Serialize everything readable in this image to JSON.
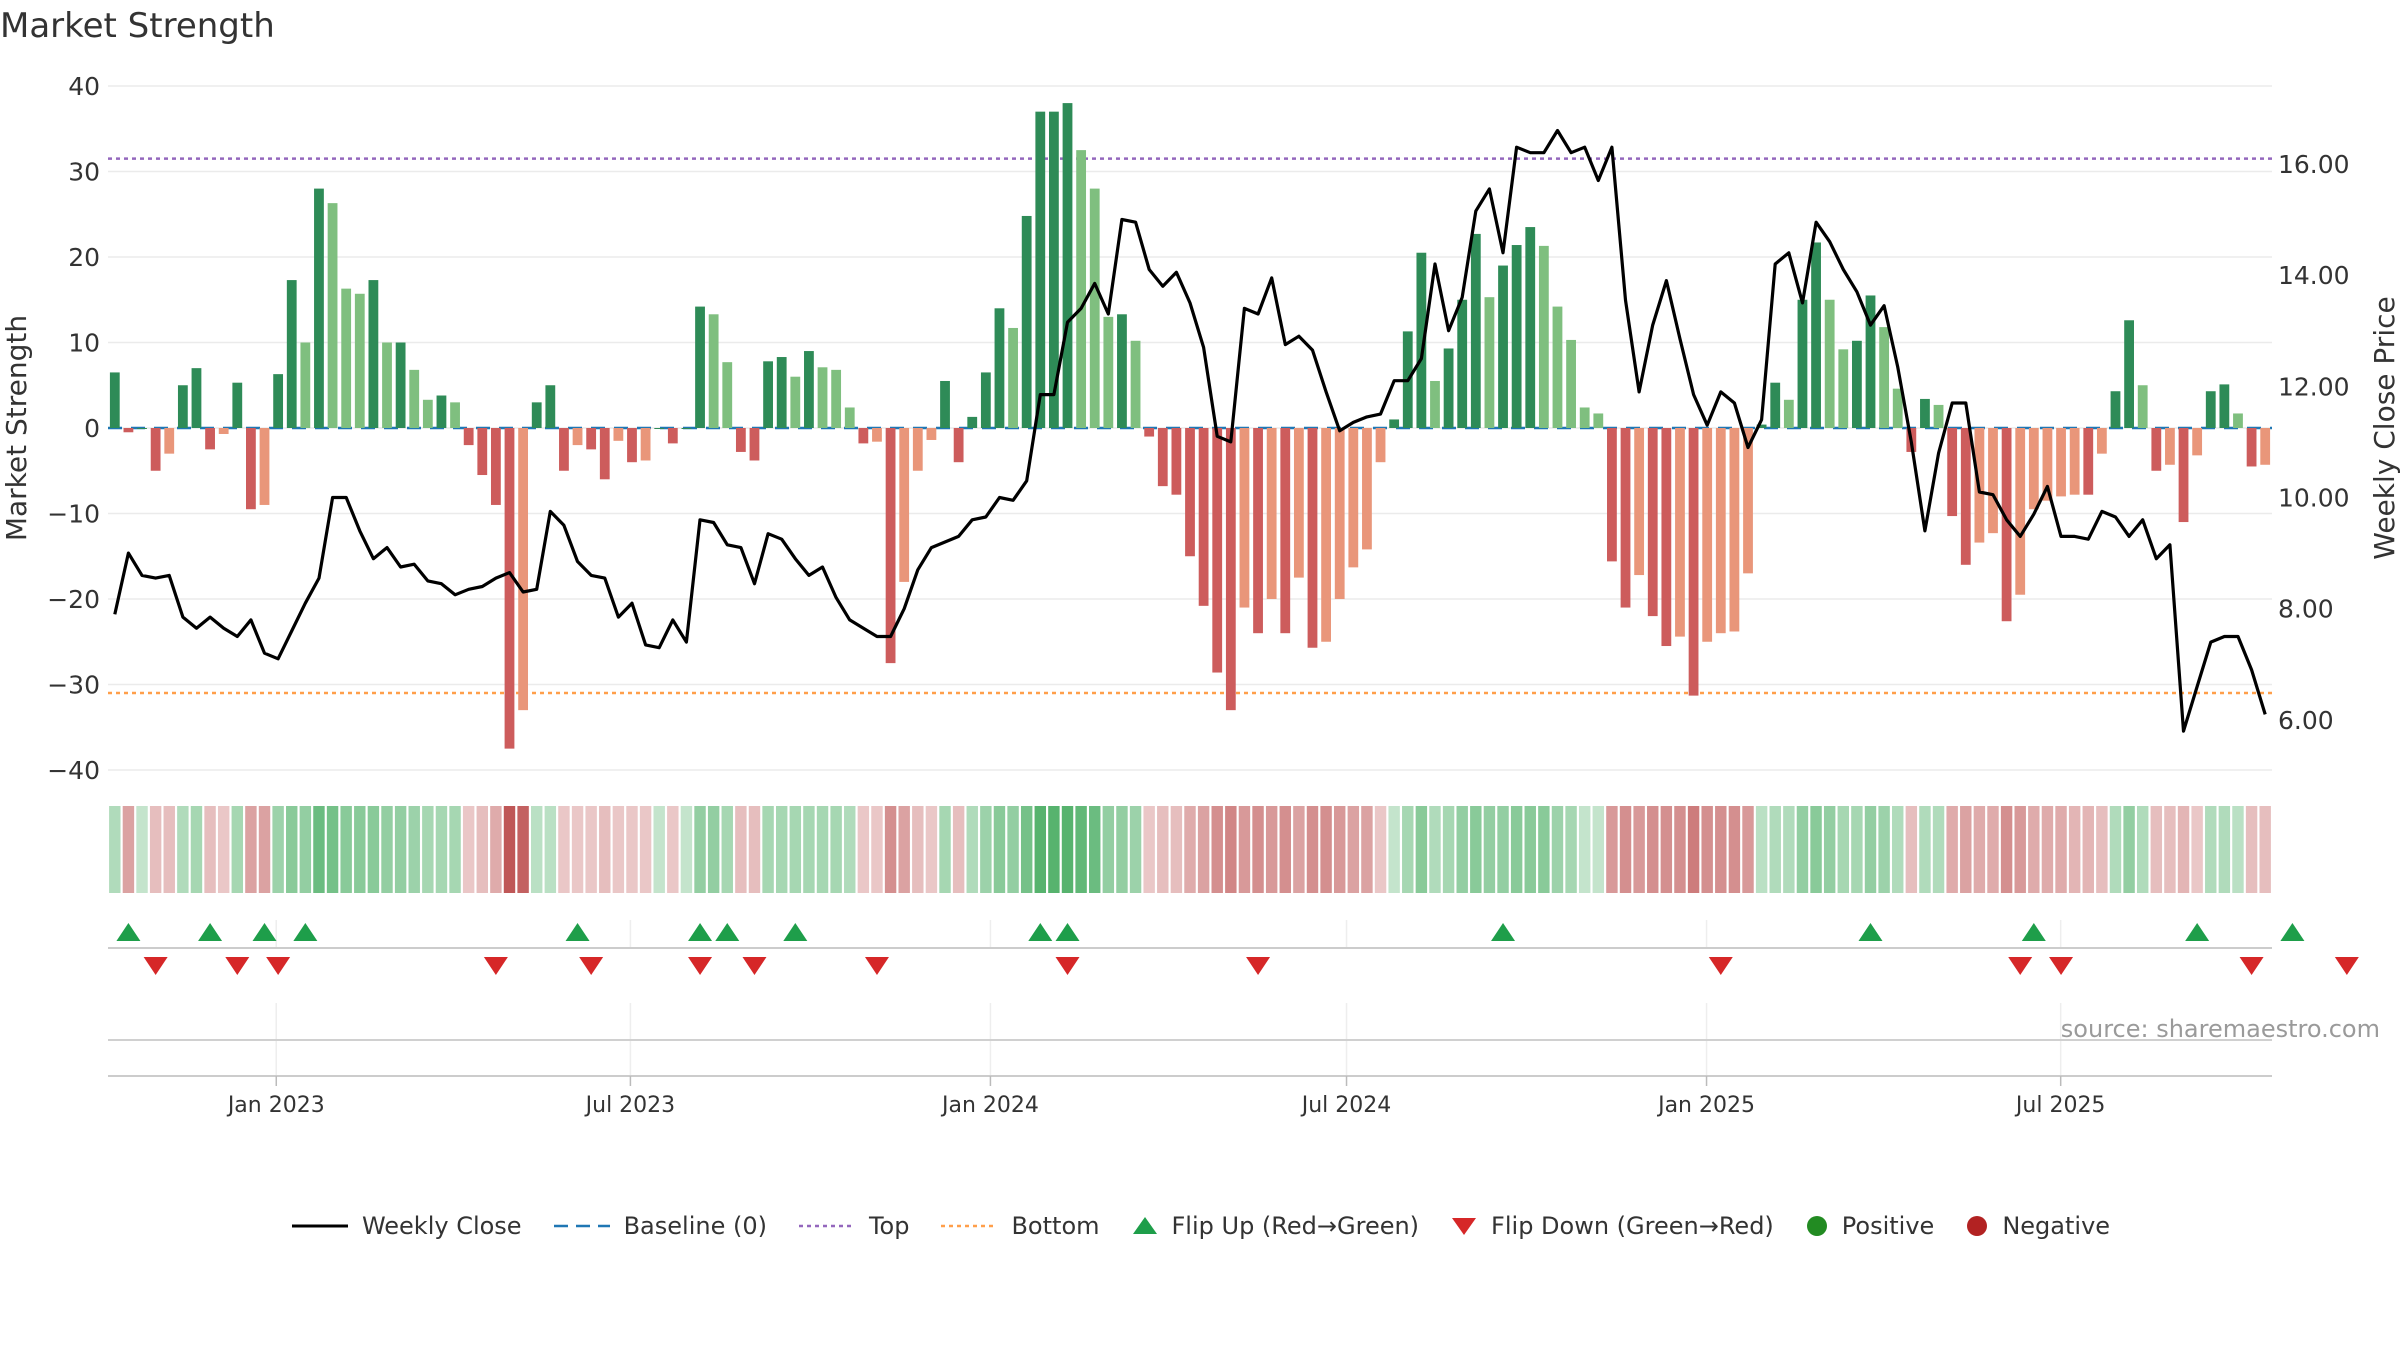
{
  "title": "Market Strength",
  "source": "source: sharemaestro.com",
  "colors": {
    "dark_green": "#2e8b57",
    "light_green": "#7fbf7f",
    "dark_red": "#cd5c5c",
    "light_red": "#e9967a",
    "top_line": "#9467bd",
    "bottom_line": "#ff9f4a",
    "baseline": "#1f77b4",
    "price_line": "#000000",
    "flip_up": "#1e9e4a",
    "flip_down": "#d62728",
    "positive": "#228b22",
    "negative": "#b22222"
  },
  "legend": [
    {
      "key": "weekly_close",
      "label": "Weekly Close"
    },
    {
      "key": "baseline",
      "label": "Baseline (0)"
    },
    {
      "key": "top",
      "label": "Top"
    },
    {
      "key": "bottom",
      "label": "Bottom"
    },
    {
      "key": "flip_up",
      "label": "Flip Up (Red→Green)"
    },
    {
      "key": "flip_down",
      "label": "Flip Down (Green→Red)"
    },
    {
      "key": "positive",
      "label": "Positive"
    },
    {
      "key": "negative",
      "label": "Negative"
    }
  ],
  "chart_data": {
    "type": "bar",
    "title": "Market Strength",
    "ylabel": "Market Strength",
    "y2label": "Weekly Close Price",
    "ylim": [
      -40,
      40
    ],
    "y2lim": [
      5.1,
      17.4
    ],
    "yticks": [
      40,
      30,
      20,
      10,
      0,
      -10,
      -20,
      -30,
      -40
    ],
    "y2ticks": [
      "16.00",
      "14.00",
      "12.00",
      "10.00",
      "8.00",
      "6.00"
    ],
    "top": 31.5,
    "bottom": -31,
    "x_start": "2022-10-07",
    "x_end": "2025-10-17",
    "xticks": [
      {
        "label": "Jan 2023",
        "date": "2023-01-01"
      },
      {
        "label": "Jul 2023",
        "date": "2023-07-01"
      },
      {
        "label": "Jan 2024",
        "date": "2024-01-01"
      },
      {
        "label": "Jul 2024",
        "date": "2024-07-01"
      },
      {
        "label": "Jan 2025",
        "date": "2025-01-01"
      },
      {
        "label": "Jul 2025",
        "date": "2025-07-01"
      }
    ],
    "strength": [
      6.5,
      -0.5,
      0,
      -5,
      -3,
      5,
      7,
      -2.5,
      -0.7,
      5.3,
      -9.5,
      -9,
      6.3,
      17.3,
      10,
      28,
      26.3,
      16.3,
      15.7,
      17.3,
      10,
      10,
      6.8,
      3.3,
      3.8,
      3,
      -2,
      -5.5,
      -9,
      -37.5,
      -33,
      3,
      5,
      -5,
      -2,
      -2.5,
      -6,
      -1.5,
      -4,
      -3.8,
      0,
      -1.8,
      0,
      14.2,
      13.3,
      7.7,
      -2.8,
      -3.8,
      7.8,
      8.3,
      6,
      9,
      7.1,
      6.8,
      2.4,
      -1.8,
      -1.6,
      -27.5,
      -18,
      -5,
      -1.4,
      5.5,
      -4,
      1.3,
      6.5,
      14,
      11.7,
      24.8,
      37,
      37,
      38,
      32.5,
      28,
      13,
      13.3,
      10.2,
      -1,
      -6.8,
      -7.8,
      -15,
      -20.8,
      -28.6,
      -33,
      -21,
      -24,
      -20,
      -24,
      -17.5,
      -25.7,
      -25,
      -20,
      -16.3,
      -14.2,
      -4,
      1,
      11.3,
      20.5,
      5.5,
      9.3,
      15,
      22.7,
      15.3,
      19,
      21.4,
      23.5,
      21.3,
      14.2,
      10.3,
      2.4,
      1.7,
      -15.6,
      -21,
      -17.2,
      -22,
      -25.5,
      -24.4,
      -31.3,
      -25,
      -24,
      -23.8,
      -17,
      0.4,
      5.3,
      3.3,
      15,
      21.7,
      15,
      9.2,
      10.2,
      15.5,
      11.8,
      4.6,
      -2.8,
      3.4,
      2.7,
      -10.3,
      -16,
      -13.4,
      -12.3,
      -22.6,
      -19.5,
      -9.5,
      -8.5,
      -8,
      -7.8,
      -7.8,
      -3,
      4.3,
      12.6,
      5,
      -5,
      -4.3,
      -11,
      -3.2,
      4.3,
      5.1,
      1.7,
      -4.5,
      -4.3
    ],
    "weekly_close": [
      7.9,
      9.0,
      8.6,
      8.55,
      8.6,
      7.85,
      7.65,
      7.85,
      7.65,
      7.5,
      7.8,
      7.2,
      7.1,
      7.6,
      8.1,
      8.55,
      10.0,
      10.0,
      9.4,
      8.9,
      9.1,
      8.75,
      8.8,
      8.5,
      8.45,
      8.25,
      8.35,
      8.4,
      8.55,
      8.65,
      8.3,
      8.35,
      9.75,
      9.5,
      8.85,
      8.6,
      8.55,
      7.85,
      8.1,
      7.35,
      7.3,
      7.8,
      7.4,
      9.6,
      9.55,
      9.15,
      9.1,
      8.45,
      9.35,
      9.25,
      8.9,
      8.6,
      8.75,
      8.2,
      7.8,
      7.65,
      7.5,
      7.5,
      8.0,
      8.7,
      9.1,
      9.2,
      9.3,
      9.6,
      9.65,
      10.0,
      9.95,
      10.3,
      11.85,
      11.85,
      13.15,
      13.4,
      13.85,
      13.3,
      15.0,
      14.95,
      14.1,
      13.8,
      14.05,
      13.5,
      12.7,
      11.1,
      11.0,
      13.4,
      13.3,
      13.95,
      12.75,
      12.9,
      12.65,
      11.9,
      11.2,
      11.35,
      11.45,
      11.5,
      12.1,
      12.1,
      12.5,
      14.2,
      13.0,
      13.6,
      15.15,
      15.55,
      14.4,
      16.3,
      16.2,
      16.2,
      16.6,
      16.2,
      16.3,
      15.7,
      16.3,
      13.55,
      11.9,
      13.1,
      13.9,
      12.85,
      11.85,
      11.3,
      11.9,
      11.7,
      10.9,
      11.4,
      14.2,
      14.4,
      13.5,
      14.95,
      14.6,
      14.1,
      13.7,
      13.1,
      13.45,
      12.35,
      11.0,
      9.4,
      10.8,
      11.7,
      11.7,
      10.1,
      10.05,
      9.6,
      9.3,
      9.7,
      10.2,
      9.3,
      9.3,
      9.25,
      9.75,
      9.65,
      9.3,
      9.6,
      8.9,
      9.15,
      5.8,
      6.6,
      7.4,
      7.5,
      7.5,
      6.9,
      6.1
    ],
    "flip_up": [
      1,
      7,
      11,
      14,
      34,
      43,
      45,
      50,
      68,
      70,
      102,
      129,
      141,
      153,
      160
    ],
    "flip_down": [
      3,
      9,
      12,
      28,
      35,
      43,
      47,
      56,
      70,
      84,
      118,
      140,
      143,
      157,
      164
    ],
    "heat_opacity": [
      0.4,
      0.5,
      0.3,
      0.35,
      0.35,
      0.4,
      0.45,
      0.35,
      0.3,
      0.45,
      0.5,
      0.5,
      0.5,
      0.6,
      0.55,
      0.75,
      0.7,
      0.6,
      0.6,
      0.6,
      0.55,
      0.55,
      0.5,
      0.45,
      0.45,
      0.45,
      0.3,
      0.35,
      0.45,
      0.9,
      0.85,
      0.35,
      0.35,
      0.3,
      0.3,
      0.3,
      0.35,
      0.3,
      0.3,
      0.3,
      0.3,
      0.3,
      0.3,
      0.55,
      0.55,
      0.45,
      0.35,
      0.35,
      0.45,
      0.45,
      0.45,
      0.45,
      0.45,
      0.45,
      0.4,
      0.3,
      0.3,
      0.6,
      0.5,
      0.35,
      0.3,
      0.45,
      0.35,
      0.4,
      0.5,
      0.6,
      0.55,
      0.7,
      0.85,
      0.85,
      0.85,
      0.8,
      0.75,
      0.55,
      0.55,
      0.5,
      0.3,
      0.35,
      0.35,
      0.45,
      0.5,
      0.6,
      0.65,
      0.55,
      0.6,
      0.55,
      0.6,
      0.5,
      0.6,
      0.6,
      0.55,
      0.5,
      0.5,
      0.3,
      0.3,
      0.45,
      0.6,
      0.4,
      0.45,
      0.55,
      0.6,
      0.55,
      0.55,
      0.6,
      0.6,
      0.6,
      0.5,
      0.45,
      0.3,
      0.3,
      0.55,
      0.6,
      0.55,
      0.6,
      0.6,
      0.6,
      0.7,
      0.6,
      0.6,
      0.6,
      0.55,
      0.35,
      0.4,
      0.4,
      0.55,
      0.6,
      0.55,
      0.45,
      0.45,
      0.55,
      0.5,
      0.4,
      0.35,
      0.4,
      0.4,
      0.45,
      0.5,
      0.45,
      0.45,
      0.6,
      0.55,
      0.45,
      0.45,
      0.45,
      0.4,
      0.4,
      0.35,
      0.4,
      0.55,
      0.4,
      0.35,
      0.35,
      0.4,
      0.3,
      0.4,
      0.4,
      0.35,
      0.35,
      0.35
    ]
  }
}
